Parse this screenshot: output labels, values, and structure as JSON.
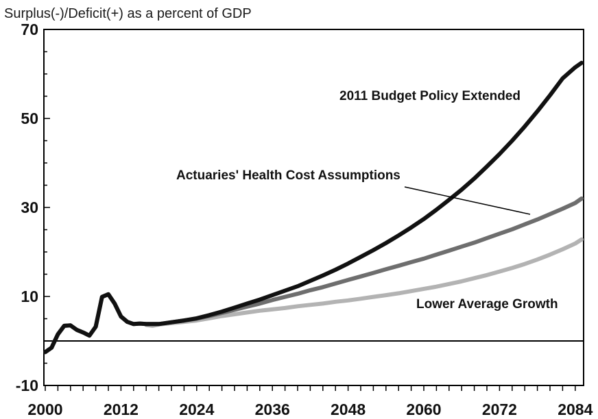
{
  "chart_data": {
    "type": "line",
    "ylabel": "Surplus(-)/Deficit(+) as a percent of GDP",
    "xlim": [
      2000,
      2085
    ],
    "ylim": [
      -10,
      70
    ],
    "y_ticks": [
      -10,
      10,
      30,
      50,
      70
    ],
    "x_ticks": [
      2000,
      2012,
      2024,
      2036,
      2048,
      2060,
      2072,
      2084
    ],
    "zero_line": true,
    "grid": false,
    "series": [
      {
        "name": "2011 Budget Policy Extended",
        "color": "#111111",
        "x": [
          2000,
          2001,
          2002,
          2003,
          2004,
          2005,
          2006,
          2007,
          2008,
          2009,
          2010,
          2011,
          2012,
          2013,
          2014,
          2015,
          2016,
          2017,
          2018,
          2020,
          2022,
          2024,
          2026,
          2028,
          2030,
          2032,
          2034,
          2036,
          2038,
          2040,
          2042,
          2044,
          2046,
          2048,
          2050,
          2052,
          2054,
          2056,
          2058,
          2060,
          2062,
          2064,
          2066,
          2068,
          2070,
          2072,
          2074,
          2076,
          2078,
          2080,
          2082,
          2084,
          2085
        ],
        "y": [
          -2.5,
          -1.5,
          1.5,
          3.4,
          3.5,
          2.5,
          1.9,
          1.2,
          3.2,
          9.9,
          10.5,
          8.4,
          5.5,
          4.3,
          3.8,
          3.9,
          3.8,
          3.8,
          3.8,
          4.2,
          4.6,
          5.1,
          5.8,
          6.6,
          7.5,
          8.4,
          9.3,
          10.3,
          11.3,
          12.3,
          13.5,
          14.7,
          16.0,
          17.4,
          18.9,
          20.4,
          22.0,
          23.7,
          25.5,
          27.4,
          29.5,
          31.7,
          34.0,
          36.5,
          39.2,
          42.0,
          45.0,
          48.2,
          51.6,
          55.2,
          59.0,
          61.5,
          62.5
        ]
      },
      {
        "name": "Actuaries' Health Cost Assumptions",
        "color": "#6e6e6e",
        "x": [
          2000,
          2001,
          2002,
          2003,
          2004,
          2005,
          2006,
          2007,
          2008,
          2009,
          2010,
          2011,
          2012,
          2013,
          2014,
          2015,
          2016,
          2017,
          2018,
          2020,
          2022,
          2024,
          2026,
          2028,
          2030,
          2032,
          2034,
          2036,
          2038,
          2040,
          2042,
          2044,
          2046,
          2048,
          2050,
          2052,
          2054,
          2056,
          2058,
          2060,
          2062,
          2064,
          2066,
          2068,
          2070,
          2072,
          2074,
          2076,
          2078,
          2080,
          2082,
          2084,
          2085
        ],
        "y": [
          -2.5,
          -1.5,
          1.5,
          3.4,
          3.5,
          2.5,
          1.9,
          1.2,
          3.2,
          9.9,
          10.5,
          8.4,
          5.5,
          4.3,
          3.8,
          3.9,
          3.8,
          3.8,
          3.8,
          4.2,
          4.6,
          5.0,
          5.6,
          6.3,
          7.0,
          7.7,
          8.4,
          9.2,
          9.9,
          10.6,
          11.4,
          12.1,
          12.9,
          13.7,
          14.5,
          15.3,
          16.1,
          16.9,
          17.7,
          18.5,
          19.4,
          20.3,
          21.2,
          22.1,
          23.1,
          24.1,
          25.1,
          26.2,
          27.3,
          28.5,
          29.7,
          31.0,
          32.0
        ]
      },
      {
        "name": "Lower Average Growth",
        "color": "#b3b3b3",
        "x": [
          2016,
          2017,
          2018,
          2020,
          2022,
          2024,
          2026,
          2028,
          2030,
          2032,
          2034,
          2036,
          2038,
          2040,
          2042,
          2044,
          2046,
          2048,
          2050,
          2052,
          2054,
          2056,
          2058,
          2060,
          2062,
          2064,
          2066,
          2068,
          2070,
          2072,
          2074,
          2076,
          2078,
          2080,
          2082,
          2084,
          2085
        ],
        "y": [
          3.6,
          3.4,
          3.7,
          4.0,
          4.3,
          4.6,
          5.1,
          5.6,
          6.0,
          6.4,
          6.8,
          7.1,
          7.4,
          7.8,
          8.1,
          8.4,
          8.8,
          9.1,
          9.5,
          9.9,
          10.3,
          10.7,
          11.2,
          11.7,
          12.2,
          12.8,
          13.4,
          14.1,
          14.8,
          15.6,
          16.4,
          17.3,
          18.3,
          19.4,
          20.6,
          21.9,
          22.8
        ]
      }
    ],
    "annotations": [
      {
        "text": "2011 Budget Policy Extended",
        "series": "2011 Budget Policy Extended"
      },
      {
        "text": "Actuaries' Health Cost Assumptions",
        "series": "Actuaries' Health Cost Assumptions"
      },
      {
        "text": "Lower Average Growth",
        "series": "Lower Average Growth"
      }
    ]
  }
}
